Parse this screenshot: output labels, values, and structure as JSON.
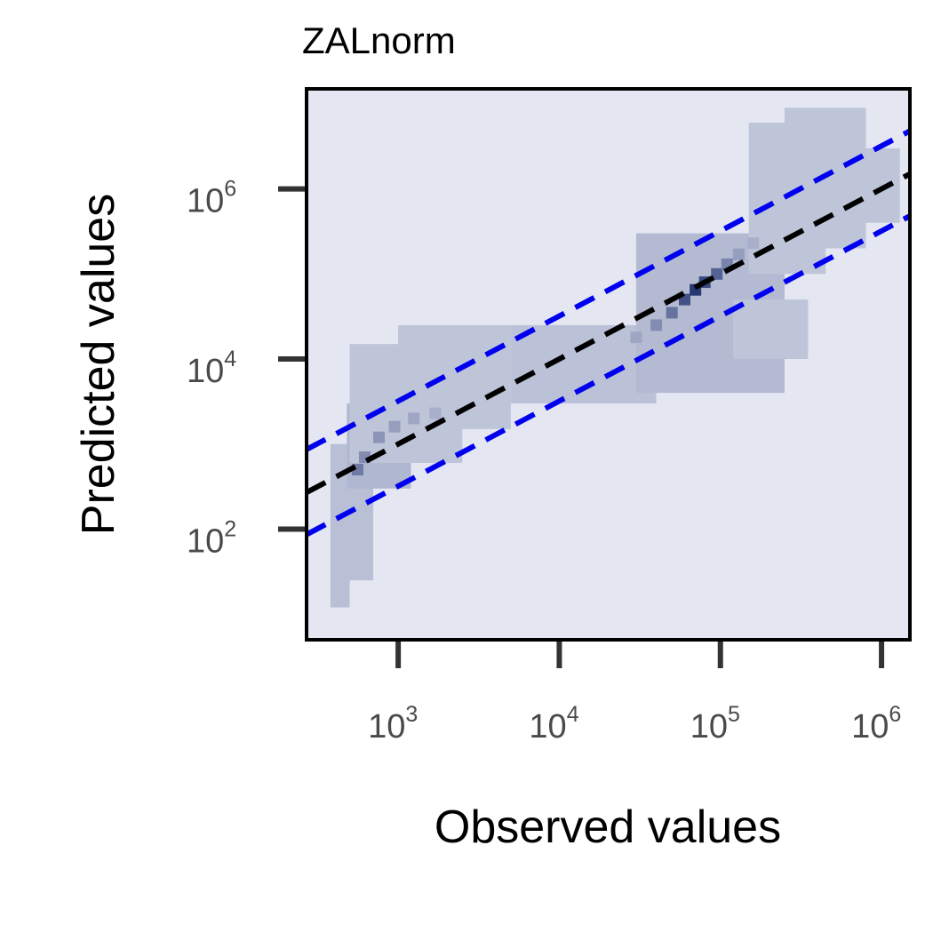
{
  "chart_data": {
    "type": "heatmap",
    "title": "ZALnorm",
    "xlabel": "Observed values",
    "ylabel": "Predicted values",
    "x_scale": "log",
    "y_scale": "log",
    "xlim": [
      270,
      1500000
    ],
    "ylim": [
      5,
      15000000
    ],
    "x_ticks": [
      {
        "value": 1000,
        "base": "10",
        "exp": "3"
      },
      {
        "value": 10000,
        "base": "10",
        "exp": "4"
      },
      {
        "value": 100000,
        "base": "10",
        "exp": "5"
      },
      {
        "value": 1000000,
        "base": "10",
        "exp": "6"
      }
    ],
    "y_ticks": [
      {
        "value": 100,
        "base": "10",
        "exp": "2"
      },
      {
        "value": 10000,
        "base": "10",
        "exp": "4"
      },
      {
        "value": 1000000,
        "base": "10",
        "exp": "6"
      }
    ],
    "grid": false,
    "colors": {
      "background": "#e4e7f1",
      "density_low": "#d4d9e8",
      "density_high": "#1f2f6e",
      "identity_line": "#000000",
      "band_lines": "#0000ee"
    },
    "reference_lines": [
      {
        "kind": "identity",
        "factor": 1,
        "color": "#000000",
        "style": "dashed"
      },
      {
        "kind": "upper_band",
        "factor": 3.2,
        "color": "#0000ee",
        "style": "dashed"
      },
      {
        "kind": "lower_band",
        "factor": 0.32,
        "color": "#0000ee",
        "style": "dashed"
      }
    ],
    "density_regions": [
      {
        "x": [
          380,
          500
        ],
        "y": [
          12,
          1000
        ],
        "level": 0.15
      },
      {
        "x": [
          500,
          700
        ],
        "y": [
          25,
          1500
        ],
        "level": 0.15
      },
      {
        "x": [
          480,
          1200
        ],
        "y": [
          300,
          3000
        ],
        "level": 0.2
      },
      {
        "x": [
          500,
          2500
        ],
        "y": [
          600,
          15000
        ],
        "level": 0.12
      },
      {
        "x": [
          1000,
          5000
        ],
        "y": [
          1500,
          25000
        ],
        "level": 0.12
      },
      {
        "x": [
          5000,
          40000
        ],
        "y": [
          3000,
          25000
        ],
        "level": 0.14
      },
      {
        "x": [
          30000,
          250000
        ],
        "y": [
          4000,
          300000
        ],
        "level": 0.18
      },
      {
        "x": [
          120000,
          350000
        ],
        "y": [
          10000,
          50000
        ],
        "level": 0.12
      },
      {
        "x": [
          150000,
          450000
        ],
        "y": [
          100000,
          6000000
        ],
        "level": 0.12
      },
      {
        "x": [
          250000,
          800000
        ],
        "y": [
          200000,
          9000000
        ],
        "level": 0.12
      },
      {
        "x": [
          600000,
          1300000
        ],
        "y": [
          400000,
          3000000
        ],
        "level": 0.12
      }
    ],
    "density_cells": [
      {
        "x": 560,
        "y": 500,
        "level": 0.55
      },
      {
        "x": 620,
        "y": 700,
        "level": 0.45
      },
      {
        "x": 760,
        "y": 1200,
        "level": 0.4
      },
      {
        "x": 950,
        "y": 1600,
        "level": 0.35
      },
      {
        "x": 1250,
        "y": 2000,
        "level": 0.3
      },
      {
        "x": 1700,
        "y": 2300,
        "level": 0.25
      },
      {
        "x": 30000,
        "y": 18000,
        "level": 0.3
      },
      {
        "x": 40000,
        "y": 25000,
        "level": 0.45
      },
      {
        "x": 50000,
        "y": 35000,
        "level": 0.6
      },
      {
        "x": 60000,
        "y": 50000,
        "level": 0.8
      },
      {
        "x": 70000,
        "y": 65000,
        "level": 0.95
      },
      {
        "x": 80000,
        "y": 80000,
        "level": 0.85
      },
      {
        "x": 95000,
        "y": 100000,
        "level": 0.7
      },
      {
        "x": 110000,
        "y": 130000,
        "level": 0.5
      },
      {
        "x": 130000,
        "y": 170000,
        "level": 0.35
      },
      {
        "x": 160000,
        "y": 230000,
        "level": 0.25
      }
    ]
  }
}
